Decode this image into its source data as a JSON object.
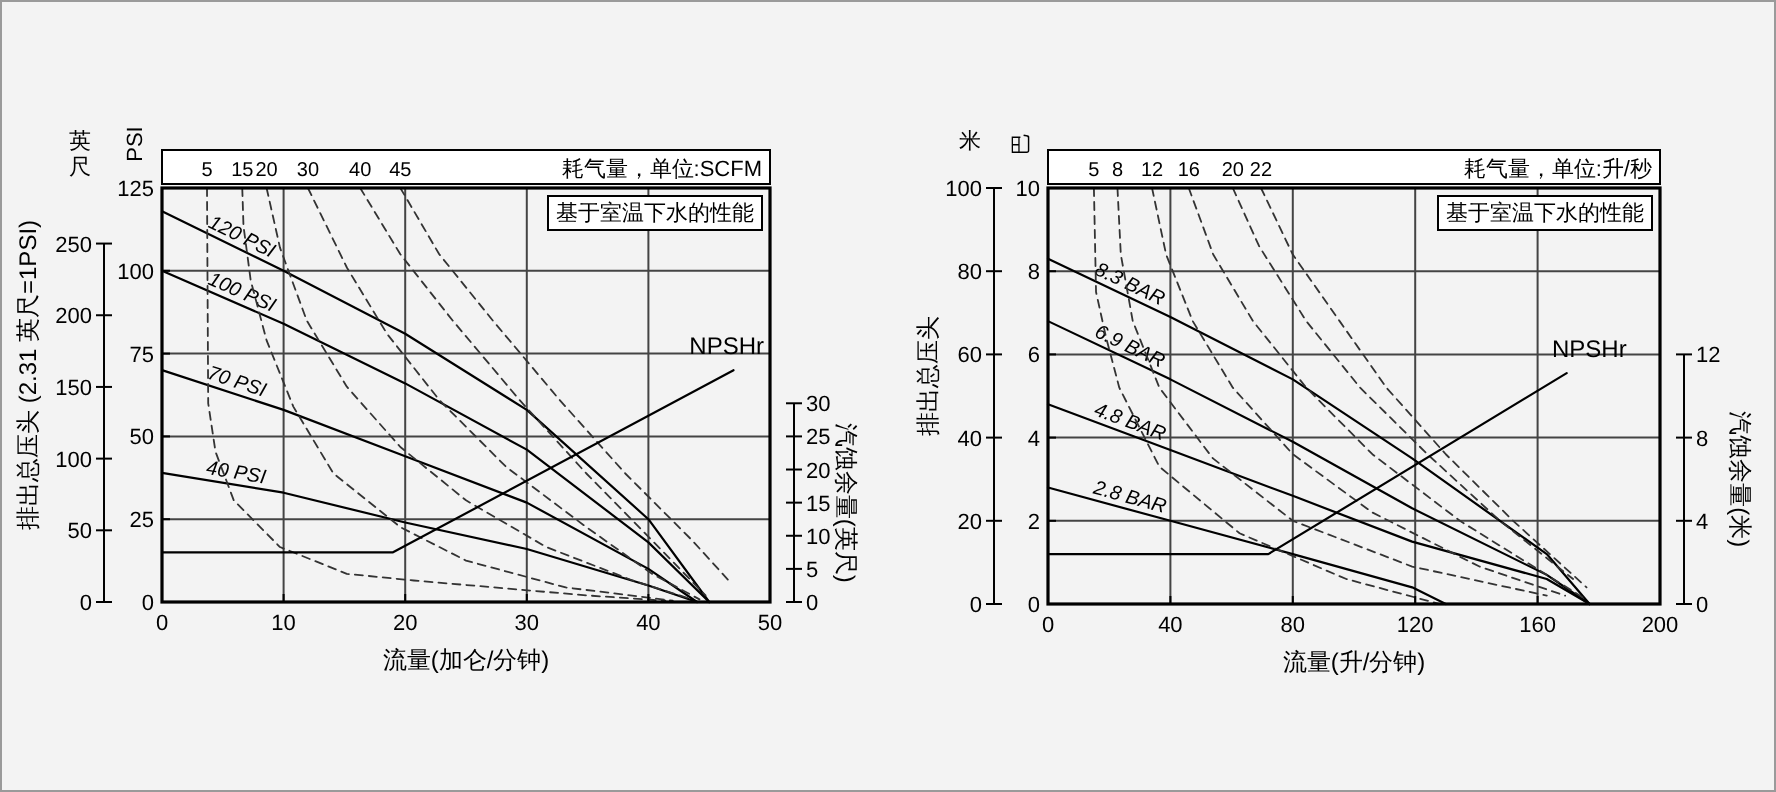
{
  "chart_data": [
    {
      "type": "line",
      "xlabel": "流量(加仑/分钟)",
      "ylabel": "排出总压头 (2.31 英尺=1PSI)",
      "y2label": "汽蚀余量(英尺)",
      "xlim": [
        0,
        50
      ],
      "xticks": [
        0,
        10,
        20,
        30,
        40,
        50
      ],
      "ylim": [
        0,
        125
      ],
      "yticks": [
        0,
        25,
        50,
        75,
        100,
        125
      ],
      "y2lim": [
        0,
        62.5
      ],
      "y2ticks": [
        0,
        5,
        10,
        15,
        20,
        25,
        30
      ],
      "y3lim": [
        0,
        288.75
      ],
      "y3ticks": [
        0,
        50,
        100,
        150,
        200,
        250
      ],
      "grid": true,
      "legend": false,
      "annotations": [
        "基于室温下水的性能",
        "耗气量，单位:SCFM",
        "PSI",
        "英尺"
      ],
      "series": [
        {
          "name": "120 PSI",
          "color": "#000000",
          "line_style": "solid",
          "x": [
            0,
            10,
            20,
            30,
            40,
            45
          ],
          "values": [
            118,
            100,
            81,
            58,
            25,
            0
          ]
        },
        {
          "name": "100 PSI",
          "color": "#000000",
          "line_style": "solid",
          "x": [
            0,
            10,
            20,
            30,
            40,
            45
          ],
          "values": [
            100,
            84,
            66,
            46,
            18,
            0
          ]
        },
        {
          "name": "70 PSI",
          "color": "#000000",
          "line_style": "solid",
          "x": [
            0,
            10,
            20,
            30,
            40,
            44
          ],
          "values": [
            70,
            58,
            44,
            30,
            10,
            0
          ]
        },
        {
          "name": "40 PSI",
          "color": "#000000",
          "line_style": "solid",
          "x": [
            0,
            10,
            20,
            30,
            40,
            44
          ],
          "values": [
            39,
            33,
            24,
            16,
            5,
            0
          ]
        },
        {
          "name": "5",
          "color": "#333333",
          "line_style": "dashed",
          "x": [
            3.7,
            3.8,
            4.4,
            5.9,
            9.7,
            15.2,
            20.7,
            34.9,
            41.4
          ],
          "values": [
            125,
            60,
            45.4,
            30.7,
            16.6,
            8.5,
            6.5,
            2,
            0.4
          ]
        },
        {
          "name": "15",
          "color": "#333333",
          "line_style": "dashed",
          "x": [
            6.6,
            6.7,
            7.3,
            8.6,
            10.8,
            14.1,
            19.6,
            25,
            33.2,
            42
          ],
          "values": [
            125,
            113.5,
            97,
            79,
            59,
            38.8,
            22.6,
            12.5,
            4.4,
            0.4
          ]
        },
        {
          "name": "20",
          "color": "#333333",
          "line_style": "dashed",
          "x": [
            8.6,
            9.7,
            11.9,
            15.2,
            19.6,
            25,
            31.6,
            38.7,
            43.6
          ],
          "values": [
            125,
            107,
            85,
            65,
            46.8,
            30.7,
            16.6,
            6.5,
            0.8
          ]
        },
        {
          "name": "30",
          "color": "#333333",
          "line_style": "dashed",
          "x": [
            12,
            15.2,
            18.5,
            22.8,
            28.3,
            34.9,
            40.3,
            44.2
          ],
          "values": [
            125,
            101,
            81,
            61,
            40.8,
            22.6,
            8.5,
            0.8
          ]
        },
        {
          "name": "40",
          "color": "#333333",
          "line_style": "dashed",
          "x": [
            16.3,
            19.6,
            23.9,
            29.4,
            34.9,
            40.3,
            44.7
          ],
          "values": [
            125,
            105,
            85,
            61,
            38.8,
            18.6,
            2
          ]
        },
        {
          "name": "45",
          "color": "#333333",
          "line_style": "dashed",
          "x": [
            19.6,
            22.8,
            27.2,
            32.7,
            38.1,
            43.6,
            46.6
          ],
          "values": [
            125,
            105,
            85,
            61,
            38.8,
            18.6,
            6.5
          ]
        },
        {
          "name": "NPSHr",
          "color": "#000000",
          "line_style": "solid",
          "axis": "y2",
          "x": [
            0,
            19,
            47
          ],
          "values": [
            7.5,
            7.5,
            35
          ]
        }
      ]
    },
    {
      "type": "line",
      "xlabel": "流量(升/分钟)",
      "ylabel": "排出总压头",
      "y2label": "汽蚀余量(米)",
      "xlim": [
        0,
        200
      ],
      "xticks": [
        0,
        40,
        80,
        120,
        160,
        200
      ],
      "ylim": [
        0,
        10
      ],
      "yticks": [
        0,
        2,
        4,
        6,
        8,
        10
      ],
      "y2lim": [
        0,
        20
      ],
      "y2ticks": [
        0,
        4,
        8,
        12
      ],
      "y3lim": [
        0,
        100
      ],
      "y3ticks": [
        0,
        20,
        40,
        60,
        80,
        100
      ],
      "grid": true,
      "legend": false,
      "annotations": [
        "基于室温下水的性能",
        "耗气量，单位:升/秒",
        "巴",
        "米"
      ],
      "series": [
        {
          "name": "8.3 BAR",
          "color": "#000000",
          "line_style": "solid",
          "x": [
            0,
            40,
            80,
            119,
            163,
            177
          ],
          "values": [
            8.3,
            6.9,
            5.4,
            3.5,
            1.2,
            0
          ]
        },
        {
          "name": "6.9 BAR",
          "color": "#000000",
          "line_style": "solid",
          "x": [
            0,
            40,
            80,
            119,
            163,
            177
          ],
          "values": [
            6.8,
            5.4,
            3.9,
            2.3,
            0.7,
            0
          ]
        },
        {
          "name": "4.8 BAR",
          "color": "#000000",
          "line_style": "solid",
          "x": [
            0,
            40,
            80,
            119,
            163,
            177
          ],
          "values": [
            4.8,
            3.7,
            2.6,
            1.5,
            0.6,
            0
          ]
        },
        {
          "name": "2.8 BAR",
          "color": "#000000",
          "line_style": "solid",
          "x": [
            0,
            40,
            80,
            119,
            130
          ],
          "values": [
            2.8,
            2.0,
            1.2,
            0.4,
            0
          ]
        },
        {
          "name": "5",
          "color": "#333333",
          "line_style": "dashed",
          "x": [
            15,
            15.7,
            19,
            23.3,
            36.4,
            62.6,
            97.5,
            128
          ],
          "values": [
            10,
            7.5,
            6.4,
            5.2,
            3.3,
            1.7,
            0.6,
            0
          ]
        },
        {
          "name": "8",
          "color": "#333333",
          "line_style": "dashed",
          "x": [
            22.7,
            23.8,
            27.7,
            36.4,
            53.9,
            80,
            119,
            163
          ],
          "values": [
            10,
            8.4,
            6.8,
            5.2,
            3.5,
            2,
            0.9,
            0.2
          ]
        },
        {
          "name": "12",
          "color": "#333333",
          "line_style": "dashed",
          "x": [
            34,
            38.6,
            47.3,
            60.4,
            80,
            106,
            141,
            169
          ],
          "values": [
            10,
            8.4,
            6.8,
            5.2,
            3.6,
            2.2,
            0.9,
            0.2
          ]
        },
        {
          "name": "16",
          "color": "#333333",
          "line_style": "dashed",
          "x": [
            46,
            54,
            67,
            84.4,
            106,
            134.6,
            163,
            176
          ],
          "values": [
            10,
            8.4,
            6.8,
            5.2,
            3.6,
            2,
            0.7,
            0.1
          ]
        },
        {
          "name": "20",
          "color": "#333333",
          "line_style": "dashed",
          "x": [
            60.4,
            69,
            84.4,
            102,
            124,
            147.7,
            171.6
          ],
          "values": [
            10,
            8.6,
            6.8,
            5.2,
            3.6,
            2,
            0.6
          ]
        },
        {
          "name": "22",
          "color": "#333333",
          "line_style": "dashed",
          "x": [
            69.6,
            80,
            95.3,
            110.6,
            130,
            152,
            176
          ],
          "values": [
            10,
            8.4,
            6.8,
            5.2,
            3.6,
            2,
            0.4
          ]
        },
        {
          "name": "NPSHr",
          "color": "#000000",
          "line_style": "solid",
          "axis": "y2",
          "x": [
            0,
            72,
            169.5
          ],
          "values": [
            2.4,
            2.4,
            11.1
          ]
        }
      ]
    }
  ]
}
